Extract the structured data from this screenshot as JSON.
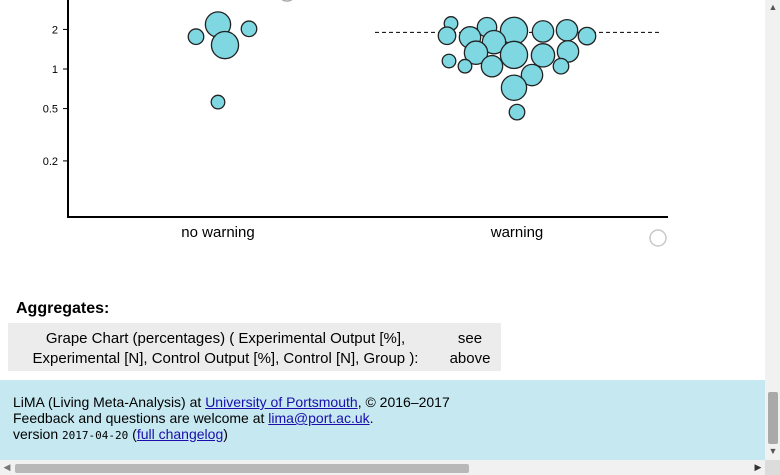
{
  "chart_data": {
    "type": "scatter",
    "title": "",
    "xlabel": "",
    "ylabel": "",
    "y_scale": "log",
    "ylim": [
      0.18,
      2.4
    ],
    "y_ticks": [
      {
        "value": 0.2,
        "label": "0.2"
      },
      {
        "value": 0.5,
        "label": "0.5"
      },
      {
        "value": 1,
        "label": "1"
      },
      {
        "value": 2,
        "label": "2"
      }
    ],
    "categories": [
      "no warning",
      "warning"
    ],
    "reference_line": {
      "category": "warning",
      "value": 1.9
    },
    "bubble_color": "#7ed7e1",
    "series": [
      {
        "category": "no warning",
        "points": [
          {
            "dx": 0,
            "y": 2.18,
            "weight": 13
          },
          {
            "dx": 31,
            "y": 2.02,
            "weight": 8
          },
          {
            "dx": -22,
            "y": 1.76,
            "weight": 8
          },
          {
            "dx": 7,
            "y": 1.52,
            "weight": 14
          },
          {
            "dx": 0,
            "y": 0.56,
            "weight": 7
          }
        ]
      },
      {
        "category": "warning",
        "points": [
          {
            "dx": -66,
            "y": 2.22,
            "weight": 7
          },
          {
            "dx": -30,
            "y": 2.08,
            "weight": 10
          },
          {
            "dx": -3,
            "y": 1.95,
            "weight": 14
          },
          {
            "dx": 26,
            "y": 1.93,
            "weight": 11
          },
          {
            "dx": 50,
            "y": 1.97,
            "weight": 11
          },
          {
            "dx": 70,
            "y": 1.78,
            "weight": 9
          },
          {
            "dx": -70,
            "y": 1.79,
            "weight": 9
          },
          {
            "dx": -47,
            "y": 1.74,
            "weight": 11
          },
          {
            "dx": -23,
            "y": 1.6,
            "weight": 12
          },
          {
            "dx": -41,
            "y": 1.33,
            "weight": 12
          },
          {
            "dx": -3,
            "y": 1.28,
            "weight": 14
          },
          {
            "dx": 26,
            "y": 1.27,
            "weight": 12
          },
          {
            "dx": 51,
            "y": 1.36,
            "weight": 11
          },
          {
            "dx": -68,
            "y": 1.15,
            "weight": 7
          },
          {
            "dx": -52,
            "y": 1.05,
            "weight": 7
          },
          {
            "dx": -25,
            "y": 1.05,
            "weight": 11
          },
          {
            "dx": 44,
            "y": 1.05,
            "weight": 8
          },
          {
            "dx": 15,
            "y": 0.9,
            "weight": 11
          },
          {
            "dx": -3,
            "y": 0.72,
            "weight": 13
          },
          {
            "dx": 0,
            "y": 0.47,
            "weight": 8
          }
        ]
      }
    ]
  },
  "aggregates": {
    "heading": "Aggregates:",
    "row_label_line1": "Grape Chart (percentages) ( Experimental Output [%],",
    "row_label_line2": "Experimental [N], Control Output [%], Control [N], Group ):",
    "row_value_line1": "see",
    "row_value_line2": "above"
  },
  "footer": {
    "line1_prefix": "LiMA (Living Meta-Analysis) at ",
    "line1_link": "University of Portsmouth",
    "line1_suffix": ", © 2016–2017",
    "line2_prefix": "Feedback and questions are welcome at ",
    "line2_link": "lima@port.ac.uk",
    "line2_suffix": ".",
    "line3_prefix": "version ",
    "line3_code": "2017-04-20",
    "line3_mid": " (",
    "line3_link": "full changelog",
    "line3_suffix": ")"
  },
  "icons": {
    "scroll_up": "scroll-up-arrow-icon",
    "scroll_down": "scroll-down-arrow-icon",
    "scroll_left": "scroll-left-arrow-icon",
    "scroll_right": "scroll-right-arrow-icon",
    "chart_handle": "circle-handle-icon"
  }
}
